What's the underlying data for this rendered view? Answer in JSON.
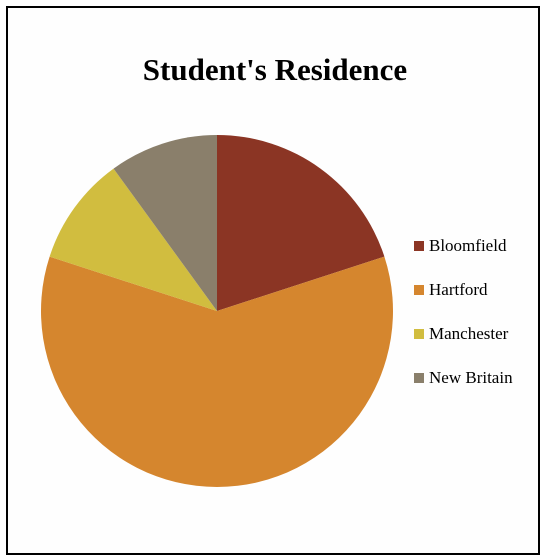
{
  "chart_data": {
    "type": "pie",
    "title": "Student's Residence",
    "slices": [
      {
        "label": "Bloomfield",
        "value": 20,
        "color": "#8b3524"
      },
      {
        "label": "Hartford",
        "value": 60,
        "color": "#d5862e"
      },
      {
        "label": "Manchester",
        "value": 10,
        "color": "#d1bd3f"
      },
      {
        "label": "New Britain",
        "value": 10,
        "color": "#8a7f6b"
      }
    ],
    "legend_position": "right"
  }
}
